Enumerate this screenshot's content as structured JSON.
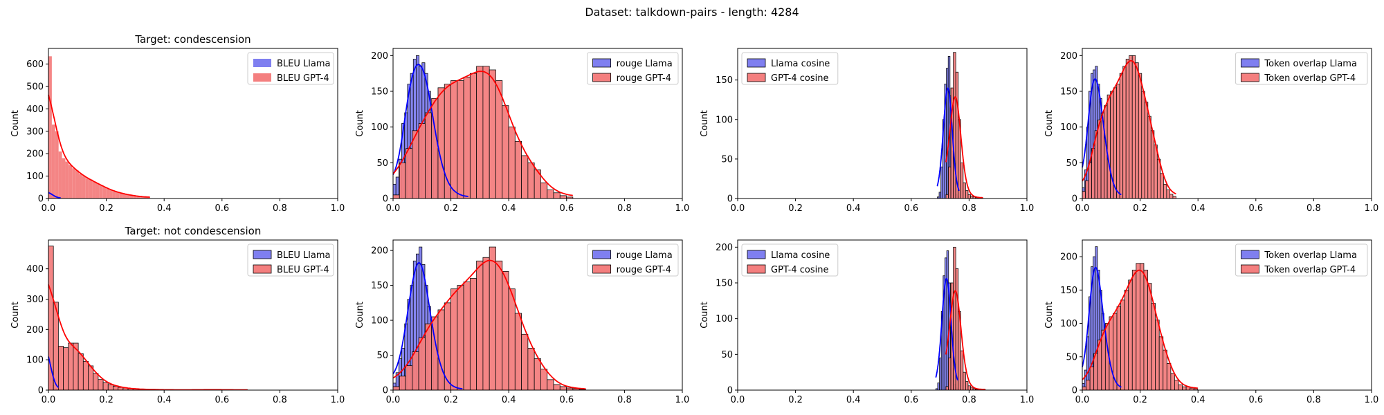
{
  "figure": {
    "suptitle": "Dataset: talkdown-pairs - length: 4284",
    "colors": {
      "llama": "#0000ff",
      "gpt4": "#ff0000",
      "llama_fill": "#7f7ff0",
      "gpt4_fill": "#f47f7f"
    }
  },
  "chart_data": [
    {
      "type": "histogram",
      "title": "Target: condescension",
      "ylabel": "Count",
      "xlim": [
        0,
        1
      ],
      "ylim": [
        0,
        670
      ],
      "xticks": [
        "0.0",
        "0.2",
        "0.4",
        "0.6",
        "0.8",
        "1.0"
      ],
      "yticks": [
        0,
        100,
        200,
        300,
        400,
        500,
        600
      ],
      "legend_loc": "upper right",
      "bar_edges": false,
      "series": [
        {
          "name": "BLEU Llama",
          "bin_start": 0.0,
          "bin_width": 0.007,
          "counts": [
            35,
            25,
            10,
            5,
            2,
            1
          ]
        },
        {
          "name": "BLEU GPT-4",
          "bin_start": 0.0,
          "bin_width": 0.0117,
          "counts": [
            635,
            330,
            300,
            210,
            180,
            165,
            150,
            135,
            125,
            110,
            100,
            90,
            85,
            75,
            68,
            60,
            52,
            45,
            38,
            32,
            28,
            24,
            20,
            17,
            14,
            12,
            10,
            8,
            6,
            5
          ]
        }
      ]
    },
    {
      "type": "histogram",
      "title": "",
      "ylabel": "Count",
      "xlim": [
        0,
        1
      ],
      "ylim": [
        0,
        210
      ],
      "xticks": [
        "0.0",
        "0.2",
        "0.4",
        "0.6",
        "0.8",
        "1.0"
      ],
      "yticks": [
        0,
        50,
        100,
        150,
        200
      ],
      "legend_loc": "upper right",
      "bar_edges": true,
      "series": [
        {
          "name": "rouge Llama",
          "bin_start": 0.0,
          "bin_width": 0.01,
          "counts": [
            20,
            30,
            55,
            105,
            120,
            160,
            175,
            195,
            200,
            185,
            190,
            175,
            150,
            115,
            95,
            70,
            50,
            35,
            25,
            15,
            12,
            8,
            6,
            4,
            3,
            2
          ]
        },
        {
          "name": "rouge GPT-4",
          "bin_start": 0.0,
          "bin_width": 0.0222,
          "counts": [
            5,
            50,
            70,
            95,
            105,
            120,
            140,
            155,
            160,
            165,
            165,
            170,
            175,
            185,
            185,
            180,
            165,
            130,
            100,
            80,
            60,
            50,
            40,
            22,
            12,
            8,
            4,
            2
          ]
        }
      ]
    },
    {
      "type": "histogram",
      "title": "",
      "ylabel": "Count",
      "xlim": [
        0,
        1
      ],
      "ylim": [
        0,
        190
      ],
      "xticks": [
        "0.0",
        "0.2",
        "0.4",
        "0.6",
        "0.8",
        "1.0"
      ],
      "yticks": [
        0,
        50,
        100,
        150
      ],
      "legend_loc": "upper left",
      "bar_edges": true,
      "series": [
        {
          "name": "Llama cosine",
          "bin_start": 0.69,
          "bin_width": 0.0063,
          "counts": [
            2,
            8,
            40,
            100,
            145,
            165,
            180,
            130,
            60,
            20,
            5,
            2
          ]
        },
        {
          "name": "GPT-4 cosine",
          "bin_start": 0.72,
          "bin_width": 0.0085,
          "counts": [
            5,
            40,
            140,
            185,
            160,
            100,
            45,
            20,
            10,
            5,
            3,
            2,
            1,
            1,
            1
          ]
        }
      ]
    },
    {
      "type": "histogram",
      "title": "",
      "ylabel": "Count",
      "xlim": [
        0,
        1
      ],
      "ylim": [
        0,
        210
      ],
      "xticks": [
        "0.0",
        "0.2",
        "0.4",
        "0.6",
        "0.8",
        "1.0"
      ],
      "yticks": [
        0,
        50,
        100,
        150,
        200
      ],
      "legend_loc": "upper right",
      "bar_edges": true,
      "series": [
        {
          "name": "Token overlap Llama",
          "bin_start": 0.0,
          "bin_width": 0.0075,
          "counts": [
            15,
            40,
            100,
            150,
            175,
            180,
            185,
            160,
            140,
            110,
            80,
            60,
            40,
            25,
            15,
            10,
            5,
            3
          ]
        },
        {
          "name": "Token overlap GPT-4",
          "bin_start": 0.0,
          "bin_width": 0.0108,
          "counts": [
            10,
            25,
            50,
            70,
            95,
            110,
            120,
            130,
            145,
            150,
            155,
            160,
            175,
            185,
            195,
            200,
            200,
            190,
            175,
            150,
            135,
            115,
            95,
            75,
            55,
            35,
            20,
            12,
            6,
            3
          ]
        }
      ]
    },
    {
      "type": "histogram",
      "title": "Target: not condescension",
      "ylabel": "Count",
      "xlim": [
        0,
        1
      ],
      "ylim": [
        0,
        495
      ],
      "xticks": [
        "0.0",
        "0.2",
        "0.4",
        "0.6",
        "0.8",
        "1.0"
      ],
      "yticks": [
        0,
        100,
        200,
        300,
        400
      ],
      "legend_loc": "upper right",
      "bar_edges": true,
      "series": [
        {
          "name": "BLEU Llama",
          "bin_start": 0.0,
          "bin_width": 0.007,
          "counts": [
            200,
            40,
            15,
            5,
            2
          ]
        },
        {
          "name": "BLEU GPT-4",
          "bin_start": 0.0,
          "bin_width": 0.0172,
          "counts": [
            475,
            290,
            145,
            140,
            155,
            155,
            120,
            95,
            80,
            55,
            35,
            25,
            18,
            13,
            9,
            7,
            5,
            4,
            3,
            2,
            2,
            2,
            1,
            1,
            1,
            1,
            1,
            1,
            1,
            1,
            1,
            1,
            2,
            2,
            1,
            1,
            1,
            1,
            1,
            1
          ]
        }
      ]
    },
    {
      "type": "histogram",
      "title": "",
      "ylabel": "Count",
      "xlim": [
        0,
        1
      ],
      "ylim": [
        0,
        215
      ],
      "xticks": [
        "0.0",
        "0.2",
        "0.4",
        "0.6",
        "0.8",
        "1.0"
      ],
      "yticks": [
        0,
        50,
        100,
        150,
        200
      ],
      "legend_loc": "upper right",
      "bar_edges": true,
      "series": [
        {
          "name": "rouge Llama",
          "bin_start": 0.0,
          "bin_width": 0.01,
          "counts": [
            10,
            25,
            45,
            60,
            95,
            130,
            150,
            185,
            195,
            205,
            180,
            150,
            120,
            90,
            65,
            45,
            30,
            20,
            12,
            8,
            5,
            3,
            2,
            1
          ]
        },
        {
          "name": "rouge GPT-4",
          "bin_start": 0.0,
          "bin_width": 0.0222,
          "counts": [
            5,
            20,
            35,
            55,
            75,
            95,
            105,
            115,
            125,
            145,
            150,
            155,
            160,
            185,
            190,
            205,
            185,
            170,
            145,
            110,
            80,
            60,
            45,
            30,
            15,
            8,
            5,
            3,
            2,
            1
          ]
        }
      ]
    },
    {
      "type": "histogram",
      "title": "",
      "ylabel": "Count",
      "xlim": [
        0,
        1
      ],
      "ylim": [
        0,
        210
      ],
      "xticks": [
        "0.0",
        "0.2",
        "0.4",
        "0.6",
        "0.8",
        "1.0"
      ],
      "yticks": [
        0,
        50,
        100,
        150,
        200
      ],
      "legend_loc": "upper left",
      "bar_edges": true,
      "series": [
        {
          "name": "Llama cosine",
          "bin_start": 0.685,
          "bin_width": 0.0063,
          "counts": [
            2,
            10,
            45,
            110,
            160,
            185,
            195,
            150,
            80,
            30,
            8,
            3
          ]
        },
        {
          "name": "GPT-4 cosine",
          "bin_start": 0.72,
          "bin_width": 0.0085,
          "counts": [
            5,
            45,
            150,
            200,
            170,
            110,
            55,
            25,
            12,
            6,
            4,
            2,
            1,
            1,
            1,
            1
          ]
        }
      ]
    },
    {
      "type": "histogram",
      "title": "",
      "ylabel": "Count",
      "xlim": [
        0,
        1
      ],
      "ylim": [
        0,
        225
      ],
      "xticks": [
        "0.0",
        "0.2",
        "0.4",
        "0.6",
        "0.8",
        "1.0"
      ],
      "yticks": [
        0,
        50,
        100,
        150,
        200
      ],
      "legend_loc": "upper right",
      "bar_edges": true,
      "series": [
        {
          "name": "Token overlap Llama",
          "bin_start": 0.0,
          "bin_width": 0.0075,
          "counts": [
            10,
            30,
            80,
            140,
            185,
            200,
            215,
            180,
            150,
            115,
            85,
            60,
            40,
            25,
            15,
            8,
            4,
            2
          ]
        },
        {
          "name": "Token overlap GPT-4",
          "bin_start": 0.0,
          "bin_width": 0.0133,
          "counts": [
            5,
            15,
            35,
            55,
            75,
            90,
            100,
            110,
            115,
            125,
            135,
            150,
            165,
            180,
            190,
            190,
            180,
            160,
            130,
            105,
            80,
            60,
            40,
            25,
            15,
            8,
            5,
            5,
            3,
            2
          ]
        }
      ]
    }
  ]
}
